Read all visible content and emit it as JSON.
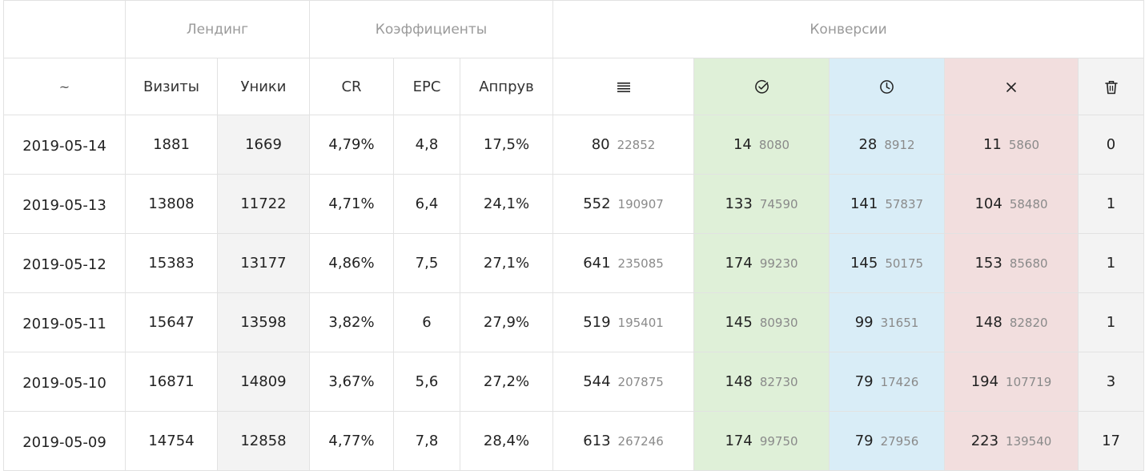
{
  "table": {
    "groups": {
      "corner": "",
      "landing": "Лендинг",
      "coefficients": "Коэффициенты",
      "conversions": "Конверсии"
    },
    "headers": {
      "date": "~",
      "visits": "Визиты",
      "uniques": "Уники",
      "cr": "CR",
      "epc": "EPC",
      "approve": "Аппрув",
      "all_icon": "list-icon",
      "approved_icon": "check-circle-icon",
      "hold_icon": "clock-icon",
      "rejected_icon": "close-icon",
      "trash_icon": "trash-icon"
    },
    "rows": [
      {
        "date": "2019-05-14",
        "visits": "1881",
        "uniques": "1669",
        "cr": "4,79%",
        "epc": "4,8",
        "approve": "17,5%",
        "all": {
          "count": "80",
          "sum": "22852"
        },
        "approved": {
          "count": "14",
          "sum": "8080"
        },
        "hold": {
          "count": "28",
          "sum": "8912"
        },
        "rejected": {
          "count": "11",
          "sum": "5860"
        },
        "trash": "0"
      },
      {
        "date": "2019-05-13",
        "visits": "13808",
        "uniques": "11722",
        "cr": "4,71%",
        "epc": "6,4",
        "approve": "24,1%",
        "all": {
          "count": "552",
          "sum": "190907"
        },
        "approved": {
          "count": "133",
          "sum": "74590"
        },
        "hold": {
          "count": "141",
          "sum": "57837"
        },
        "rejected": {
          "count": "104",
          "sum": "58480"
        },
        "trash": "1"
      },
      {
        "date": "2019-05-12",
        "visits": "15383",
        "uniques": "13177",
        "cr": "4,86%",
        "epc": "7,5",
        "approve": "27,1%",
        "all": {
          "count": "641",
          "sum": "235085"
        },
        "approved": {
          "count": "174",
          "sum": "99230"
        },
        "hold": {
          "count": "145",
          "sum": "50175"
        },
        "rejected": {
          "count": "153",
          "sum": "85680"
        },
        "trash": "1"
      },
      {
        "date": "2019-05-11",
        "visits": "15647",
        "uniques": "13598",
        "cr": "3,82%",
        "epc": "6",
        "approve": "27,9%",
        "all": {
          "count": "519",
          "sum": "195401"
        },
        "approved": {
          "count": "145",
          "sum": "80930"
        },
        "hold": {
          "count": "99",
          "sum": "31651"
        },
        "rejected": {
          "count": "148",
          "sum": "82820"
        },
        "trash": "1"
      },
      {
        "date": "2019-05-10",
        "visits": "16871",
        "uniques": "14809",
        "cr": "3,67%",
        "epc": "5,6",
        "approve": "27,2%",
        "all": {
          "count": "544",
          "sum": "207875"
        },
        "approved": {
          "count": "148",
          "sum": "82730"
        },
        "hold": {
          "count": "79",
          "sum": "17426"
        },
        "rejected": {
          "count": "194",
          "sum": "107719"
        },
        "trash": "3"
      },
      {
        "date": "2019-05-09",
        "visits": "14754",
        "uniques": "12858",
        "cr": "4,77%",
        "epc": "7,8",
        "approve": "28,4%",
        "all": {
          "count": "613",
          "sum": "267246"
        },
        "approved": {
          "count": "174",
          "sum": "99750"
        },
        "hold": {
          "count": "79",
          "sum": "27956"
        },
        "rejected": {
          "count": "223",
          "sum": "139540"
        },
        "trash": "17"
      }
    ]
  },
  "colors": {
    "approved_bg": "#dff0d8",
    "hold_bg": "#d9edf7",
    "rejected_bg": "#f2dede",
    "neutral_bg": "#f3f3f3",
    "border": "#e2e2e2"
  }
}
